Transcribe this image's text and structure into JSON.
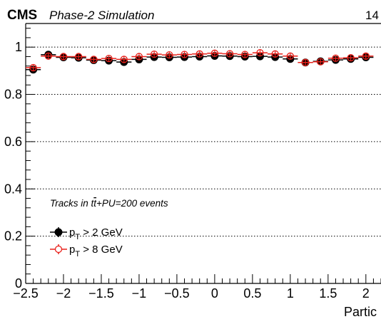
{
  "header": {
    "experiment": "CMS",
    "subtitle": "Phase-2 Simulation",
    "energy": "14"
  },
  "chart_data": {
    "type": "scatter",
    "xlabel": "Partic",
    "ylabel": "",
    "xlim": [
      -2.5,
      2.2
    ],
    "ylim": [
      0,
      1.1
    ],
    "grid": "horizontal dotted at 0.2, 0.4, 0.6, 0.8, 1.0",
    "x_ticks": [
      "−2.5",
      "−2",
      "−1.5",
      "−1",
      "−0.5",
      "0",
      "0.5",
      "1",
      "1.5",
      "2"
    ],
    "y_ticks": [
      "0",
      "0.2",
      "0.4",
      "0.6",
      "0.8",
      "1"
    ],
    "annotation": {
      "prefix": "Tracks in ",
      "t": "t",
      "tbar": "t",
      "suffix": "+PU=200 events"
    },
    "legend": {
      "placement": "left, mid-lower",
      "entries": [
        {
          "prefix": "p",
          "sub": "T",
          "suffix": " > 2 GeV"
        },
        {
          "prefix": "p",
          "sub": "T",
          "suffix": " > 8 GeV"
        }
      ]
    },
    "x": [
      -2.4,
      -2.2,
      -2.0,
      -1.8,
      -1.6,
      -1.4,
      -1.2,
      -1.0,
      -0.8,
      -0.6,
      -0.4,
      -0.2,
      0.0,
      0.2,
      0.4,
      0.6,
      0.8,
      1.0,
      1.2,
      1.4,
      1.6,
      1.8,
      2.0
    ],
    "series": [
      {
        "name": "pT > 2 GeV",
        "color": "#000000",
        "marker": "filled-circle",
        "values": [
          0.905,
          0.968,
          0.957,
          0.955,
          0.945,
          0.943,
          0.937,
          0.948,
          0.958,
          0.957,
          0.958,
          0.96,
          0.963,
          0.962,
          0.96,
          0.961,
          0.958,
          0.95,
          0.935,
          0.94,
          0.946,
          0.95,
          0.957
        ]
      },
      {
        "name": "pT > 8 GeV",
        "color": "#e8201a",
        "marker": "open-circle",
        "values": [
          0.913,
          0.962,
          0.96,
          0.96,
          0.948,
          0.952,
          0.948,
          0.96,
          0.97,
          0.967,
          0.969,
          0.971,
          0.974,
          0.972,
          0.969,
          0.976,
          0.971,
          0.962,
          0.935,
          0.938,
          0.953,
          0.955,
          0.962
        ]
      }
    ]
  }
}
